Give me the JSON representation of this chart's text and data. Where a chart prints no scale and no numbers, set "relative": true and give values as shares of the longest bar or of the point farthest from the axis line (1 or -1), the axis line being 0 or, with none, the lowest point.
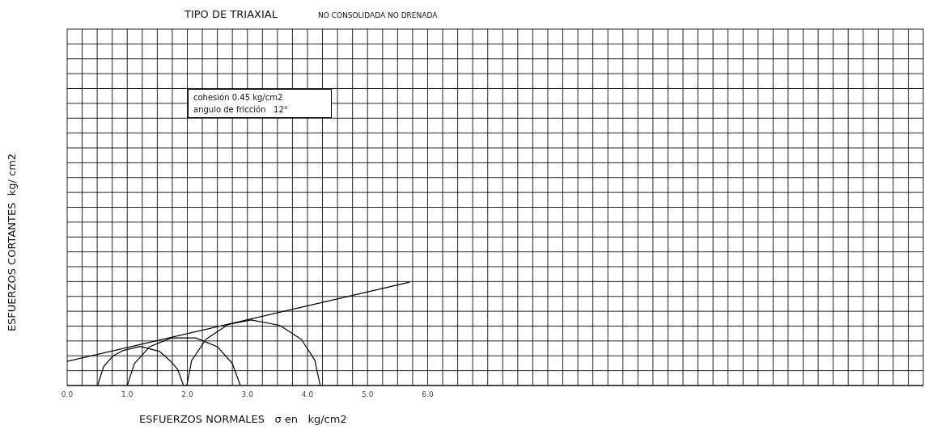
{
  "chart_data": {
    "type": "line",
    "title": "TIPO DE TRIAXIAL",
    "subtitle": "NO CONSOLIDADA NO DRENADA",
    "xlabel": "ESFUERZOS NORMALES   σ en   kg/cm2",
    "ylabel": "ESFUERZOS CORTANTES  kg/ cm2",
    "relative": true,
    "grid": true,
    "legend": false,
    "marker": "none",
    "line_style": "solid",
    "xlim": [
      0,
      14.25
    ],
    "xticks": [
      {
        "value": 0,
        "label": "0.0"
      },
      {
        "value": 0.25,
        "label": null
      },
      {
        "value": 0.5,
        "label": null
      },
      {
        "value": 0.75,
        "label": null
      },
      {
        "value": 1,
        "label": "1.0"
      },
      {
        "value": 1.25,
        "label": null
      },
      {
        "value": 1.5,
        "label": null
      },
      {
        "value": 1.75,
        "label": null
      },
      {
        "value": 2,
        "label": "2.0"
      },
      {
        "value": 2.25,
        "label": null
      },
      {
        "value": 2.5,
        "label": null
      },
      {
        "value": 2.75,
        "label": null
      },
      {
        "value": 3,
        "label": "3.0"
      },
      {
        "value": 3.25,
        "label": null
      },
      {
        "value": 3.5,
        "label": null
      },
      {
        "value": 3.75,
        "label": null
      },
      {
        "value": 4,
        "label": "4.0"
      },
      {
        "value": 4.25,
        "label": null
      },
      {
        "value": 4.5,
        "label": null
      },
      {
        "value": 4.75,
        "label": null
      },
      {
        "value": 5,
        "label": "5.0"
      },
      {
        "value": 5.25,
        "label": null
      },
      {
        "value": 5.5,
        "label": null
      },
      {
        "value": 5.75,
        "label": null
      },
      {
        "value": 6,
        "label": "6.0"
      },
      {
        "value": 6.25,
        "label": null
      },
      {
        "value": 6.5,
        "label": null
      },
      {
        "value": 6.75,
        "label": null
      },
      {
        "value": 7,
        "label": null
      },
      {
        "value": 7.25,
        "label": null
      },
      {
        "value": 7.5,
        "label": null
      },
      {
        "value": 7.75,
        "label": null
      },
      {
        "value": 8,
        "label": null
      },
      {
        "value": 8.25,
        "label": null
      },
      {
        "value": 8.5,
        "label": null
      },
      {
        "value": 8.75,
        "label": null
      },
      {
        "value": 9,
        "label": null
      },
      {
        "value": 9.25,
        "label": null
      },
      {
        "value": 9.5,
        "label": null
      },
      {
        "value": 9.75,
        "label": null
      },
      {
        "value": 10,
        "label": null
      },
      {
        "value": 10.25,
        "label": null
      },
      {
        "value": 10.5,
        "label": null
      },
      {
        "value": 10.75,
        "label": null
      },
      {
        "value": 11,
        "label": null
      },
      {
        "value": 11.25,
        "label": null
      },
      {
        "value": 11.5,
        "label": null
      },
      {
        "value": 11.75,
        "label": null
      },
      {
        "value": 12,
        "label": null
      },
      {
        "value": 12.25,
        "label": null
      },
      {
        "value": 12.5,
        "label": null
      },
      {
        "value": 12.75,
        "label": null
      },
      {
        "value": 13,
        "label": null
      },
      {
        "value": 13.25,
        "label": null
      },
      {
        "value": 13.5,
        "label": null
      },
      {
        "value": 13.75,
        "label": null
      },
      {
        "value": 14,
        "label": null
      },
      {
        "value": 14.25,
        "label": null
      }
    ],
    "series": [
      {
        "color": "#000000",
        "x": [
          0,
          5.7
        ],
        "values": [
          0.233,
          1
        ]
      },
      {
        "color": "#000000",
        "x": [
          0.505,
          0.608,
          0.766,
          0.923,
          1.216,
          1.532,
          1.712,
          1.838,
          1.937
        ],
        "values": [
          0,
          0.184,
          0.288,
          0.337,
          0.378,
          0.332,
          0.241,
          0.158,
          0
        ]
      },
      {
        "color": "#000000",
        "x": [
          1.0,
          1.117,
          1.374,
          1.734,
          2.14,
          2.5,
          2.748,
          2.883
        ],
        "values": [
          0,
          0.21,
          0.376,
          0.461,
          0.461,
          0.376,
          0.215,
          0
        ]
      },
      {
        "color": "#000000",
        "x": [
          1.991,
          2.072,
          2.311,
          2.68,
          3.063,
          3.536,
          3.896,
          4.122,
          4.212
        ],
        "values": [
          0,
          0.241,
          0.448,
          0.591,
          0.635,
          0.583,
          0.448,
          0.246,
          0
        ]
      }
    ],
    "annotations": [
      "cohesión 0.45 kg/cm2",
      "angulo de fricción   12°"
    ]
  }
}
